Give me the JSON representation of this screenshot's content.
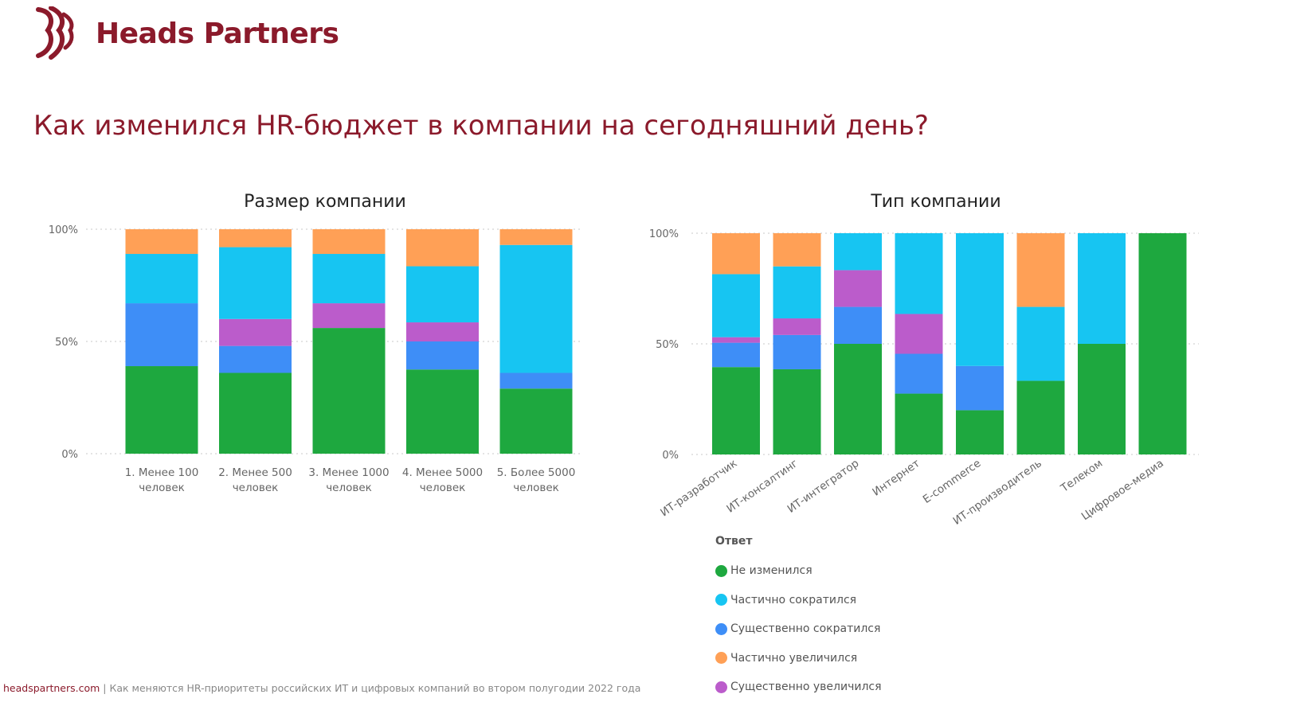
{
  "brand": {
    "name": "Heads Partners"
  },
  "page": {
    "title": "Как изменился HR-бюджет в компании на сегодняшний день?"
  },
  "footer": {
    "site": "headspartners.com",
    "separator": "|",
    "text": "Как меняются HR-приоритеты российских ИТ и цифровых компаний во втором полугодии 2022 года"
  },
  "legend": {
    "title": "Ответ",
    "items": [
      {
        "label": "Не изменился",
        "color": "#1ea83f"
      },
      {
        "label": "Частично сократился",
        "color": "#17c5f2"
      },
      {
        "label": "Существенно сократился",
        "color": "#3e8ef7"
      },
      {
        "label": "Частично увеличился",
        "color": "#ffa056"
      },
      {
        "label": "Существенно увеличился",
        "color": "#bb5ccb"
      }
    ]
  },
  "chart_data": [
    {
      "type": "bar",
      "stacked": true,
      "title": "Размер компании",
      "yticks": [
        "0%",
        "50%",
        "100%"
      ],
      "ylim": [
        0,
        100
      ],
      "categories": [
        [
          "1. Менее 100",
          "человек"
        ],
        [
          "2. Менее 500",
          "человек"
        ],
        [
          "3. Менее 1000",
          "человек"
        ],
        [
          "4. Менее 5000",
          "человек"
        ],
        [
          "5. Более 5000",
          "человек"
        ]
      ],
      "series": [
        {
          "name": "Не изменился",
          "color": "#1ea83f",
          "values": [
            39,
            36,
            56,
            37.5,
            29
          ]
        },
        {
          "name": "Существенно сократился",
          "color": "#3e8ef7",
          "values": [
            28,
            12,
            0,
            12.5,
            7
          ]
        },
        {
          "name": "Существенно увеличился",
          "color": "#bb5ccb",
          "values": [
            0,
            12,
            11,
            8.5,
            0
          ]
        },
        {
          "name": "Частично сократился",
          "color": "#17c5f2",
          "values": [
            22,
            32,
            22,
            25,
            57
          ]
        },
        {
          "name": "Частично увеличился",
          "color": "#ffa056",
          "values": [
            11,
            8,
            11,
            16.5,
            7
          ]
        }
      ],
      "grid": true
    },
    {
      "type": "bar",
      "stacked": true,
      "title": "Тип компании",
      "yticks": [
        "0%",
        "50%",
        "100%"
      ],
      "ylim": [
        0,
        100
      ],
      "categories": [
        [
          "ИТ-разработчик"
        ],
        [
          "ИТ-консалтинг"
        ],
        [
          "ИТ-интегратор"
        ],
        [
          "Интернет"
        ],
        [
          "E-commerce"
        ],
        [
          "ИТ-производитель"
        ],
        [
          "Телеком"
        ],
        [
          "Цифровое-медиа"
        ]
      ],
      "series": [
        {
          "name": "Не изменился",
          "color": "#1ea83f",
          "values": [
            39.5,
            38.5,
            50,
            27.5,
            20,
            33.3,
            50,
            100
          ]
        },
        {
          "name": "Существенно сократился",
          "color": "#3e8ef7",
          "values": [
            11,
            15.5,
            16.7,
            18,
            20,
            0,
            0,
            0
          ]
        },
        {
          "name": "Существенно увеличился",
          "color": "#bb5ccb",
          "values": [
            2.5,
            7.5,
            16.6,
            18,
            0,
            0,
            0,
            0
          ]
        },
        {
          "name": "Частично сократился",
          "color": "#17c5f2",
          "values": [
            28.5,
            23.5,
            16.7,
            36.5,
            60,
            33.4,
            50,
            0
          ]
        },
        {
          "name": "Частично увеличился",
          "color": "#ffa056",
          "values": [
            18.5,
            15,
            0,
            0,
            0,
            33.3,
            0,
            0
          ]
        }
      ],
      "grid": true
    }
  ]
}
